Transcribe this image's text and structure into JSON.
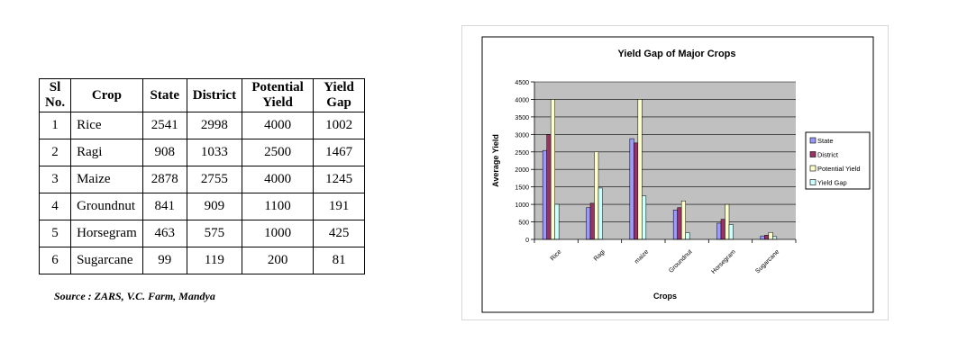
{
  "table": {
    "headers": {
      "sl_line1": "Sl",
      "sl_line2": "No.",
      "crop": "Crop",
      "state": "State",
      "district": "District",
      "potential_line1": "Potential",
      "potential_line2": "Yield",
      "gap_line1": "Yield",
      "gap_line2": "Gap"
    },
    "rows": [
      {
        "sl": "1",
        "crop": "Rice",
        "state": "2541",
        "district": "2998",
        "potential": "4000",
        "gap": "1002"
      },
      {
        "sl": "2",
        "crop": "Ragi",
        "state": "908",
        "district": "1033",
        "potential": "2500",
        "gap": "1467"
      },
      {
        "sl": "3",
        "crop": "Maize",
        "state": "2878",
        "district": "2755",
        "potential": "4000",
        "gap": "1245"
      },
      {
        "sl": "4",
        "crop": "Groundnut",
        "state": "841",
        "district": "909",
        "potential": "1100",
        "gap": "191"
      },
      {
        "sl": "5",
        "crop": "Horsegram",
        "state": "463",
        "district": "575",
        "potential": "1000",
        "gap": "425"
      },
      {
        "sl": "6",
        "crop": "Sugarcane",
        "state": "99",
        "district": "119",
        "potential": "200",
        "gap": "81"
      }
    ]
  },
  "source": "Source : ZARS, V.C. Farm, Mandya",
  "chart_data": {
    "type": "bar",
    "title": "Yield Gap of Major Crops",
    "xlabel": "Crops",
    "ylabel": "Average Yield",
    "categories": [
      "Rice",
      "Ragi",
      "maize",
      "Groundnut",
      "Horsegram",
      "Sugarcane"
    ],
    "ylim": [
      0,
      4500
    ],
    "yticks": [
      0,
      500,
      1000,
      1500,
      2000,
      2500,
      3000,
      3500,
      4000,
      4500
    ],
    "grid": true,
    "legend_position": "right",
    "series": [
      {
        "name": "State",
        "color": "#9999ff",
        "values": [
          2541,
          908,
          2878,
          841,
          463,
          99
        ]
      },
      {
        "name": "District",
        "color": "#993366",
        "values": [
          2998,
          1033,
          2755,
          909,
          575,
          119
        ]
      },
      {
        "name": "Potential Yield",
        "color": "#ffffcc",
        "values": [
          4000,
          2500,
          4000,
          1100,
          1000,
          200
        ]
      },
      {
        "name": "Yield Gap",
        "color": "#ccffff",
        "values": [
          1002,
          1467,
          1245,
          191,
          425,
          81
        ]
      }
    ],
    "plot_background": "#c0c0c0"
  }
}
